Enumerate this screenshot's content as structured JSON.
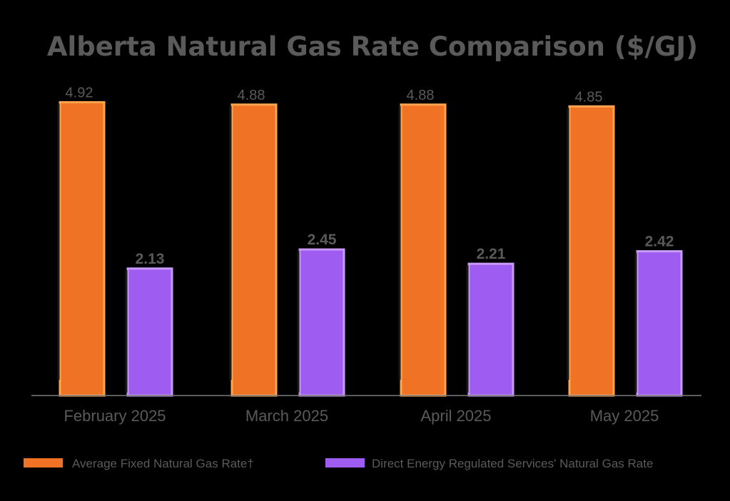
{
  "colors": {
    "background": "#000000",
    "fixed_rate": "#f07224",
    "fixed_rate_outline": "#ffa550",
    "regulated_rate": "#9e5cf0",
    "regulated_rate_outline": "#c99bf7",
    "text_gray": "#5a5a5a",
    "axis_line": "#7a7a7a"
  },
  "chart_data": {
    "type": "bar",
    "title": "Alberta Natural Gas Rate Comparison ($/GJ)",
    "xlabel": "",
    "ylabel": "",
    "ylim": [
      0,
      5.2
    ],
    "grid": false,
    "legend_position": "bottom",
    "categories": [
      "February 2025",
      "March 2025",
      "April 2025",
      "May 2025"
    ],
    "series": [
      {
        "name": "Average Fixed Natural Gas Rate†",
        "color_key": "fixed_rate",
        "values": [
          4.92,
          4.88,
          4.88,
          4.85
        ],
        "labels": [
          "4.92",
          "4.88",
          "4.88",
          "4.85"
        ]
      },
      {
        "name": "Direct Energy Regulated Services' Natural Gas Rate",
        "color_key": "regulated_rate",
        "values": [
          2.13,
          2.45,
          2.21,
          2.42
        ],
        "labels": [
          "2.13",
          "2.45",
          "2.21",
          "2.42"
        ]
      }
    ]
  }
}
